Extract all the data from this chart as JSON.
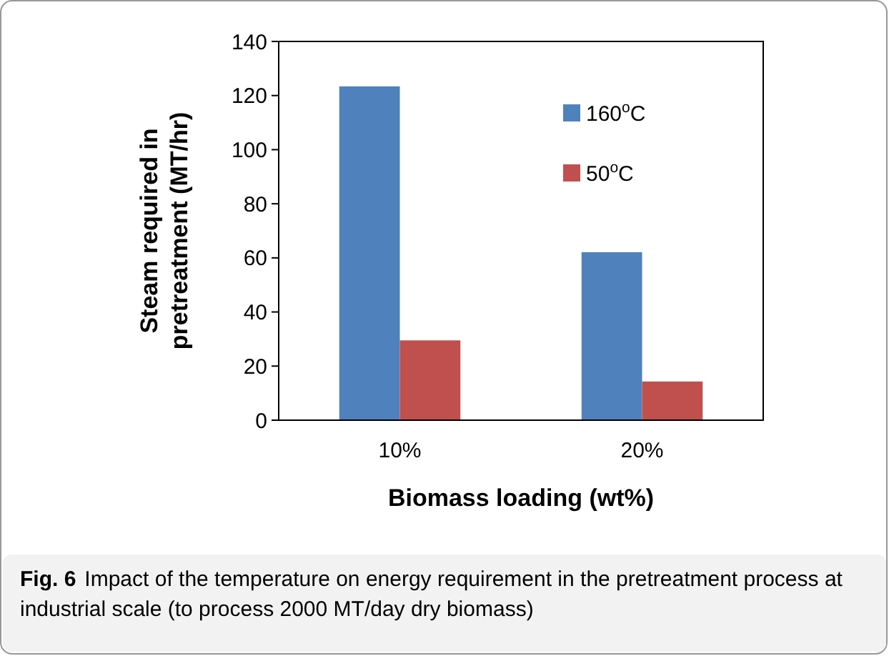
{
  "chart_data": {
    "type": "bar",
    "xlabel": "Biomass loading (wt%)",
    "ylabel": "Steam required in pretreatment (MT/hr)",
    "categories": [
      "10%",
      "20%"
    ],
    "series": [
      {
        "name": "160$^{o}$C",
        "color": "#4f81bd",
        "values": [
          123.4,
          62.1
        ]
      },
      {
        "name": "50$^{o}$C",
        "color": "#c0504d",
        "values": [
          29.5,
          14.3
        ]
      }
    ],
    "ylim": [
      0,
      140
    ],
    "yticks": [
      0,
      20,
      40,
      60,
      80,
      100,
      120,
      140
    ],
    "grid": false,
    "legend": "top right",
    "annotations": [
      "Fig. 6 Impact of the temperature on energy requirement in the pretreatment process at industrial scale (to process 2000 MT/day dry biomass)"
    ]
  }
}
